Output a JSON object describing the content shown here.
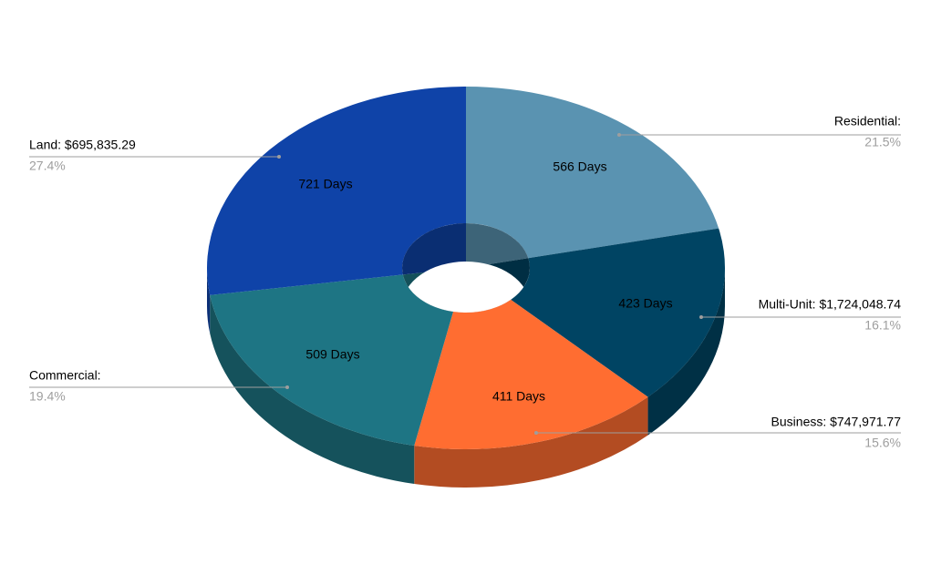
{
  "chart_data": {
    "type": "pie",
    "donut": true,
    "three_d": true,
    "categories": [
      "Residential:",
      "Multi-Unit: $1,724,048.74",
      "Business: $747,971.77",
      "Commercial:",
      "Land: $695,835.29"
    ],
    "values": [
      21.5,
      16.1,
      15.6,
      19.4,
      27.4
    ],
    "value_labels": [
      "21.5%",
      "16.1%",
      "15.6%",
      "19.4%",
      "27.4%"
    ],
    "slice_labels": [
      "566 Days",
      "423 Days",
      "411 Days",
      "509 Days",
      "721 Days"
    ],
    "colors": [
      "#5a93b1",
      "#004463",
      "#ff6d31",
      "#1e7584",
      "#0f43a8"
    ]
  }
}
